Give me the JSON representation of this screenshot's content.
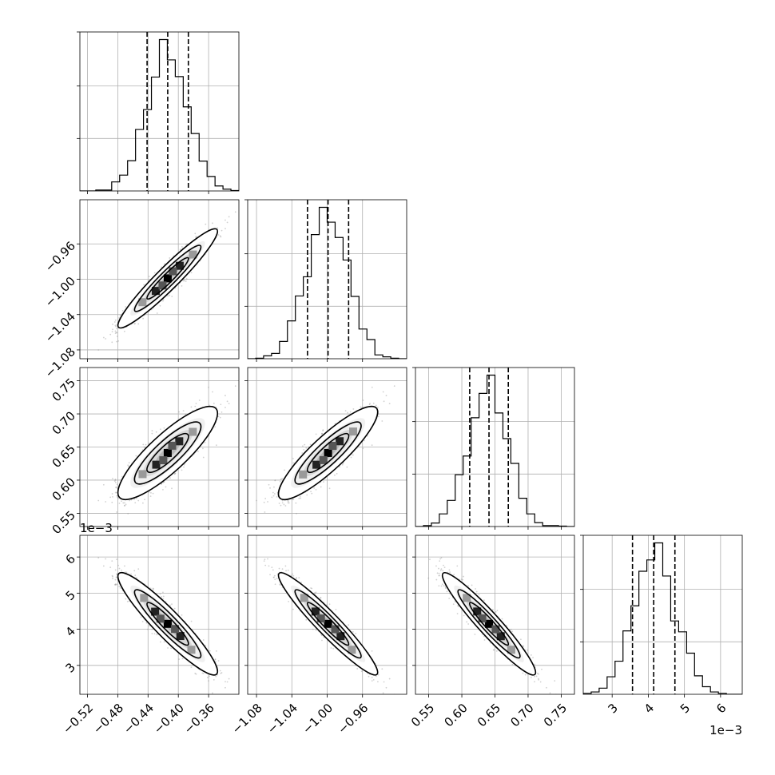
{
  "chart_data": {
    "type": "corner",
    "colors": {
      "ink": "#000000",
      "grid": "#b0b0b0",
      "samples": "#9a9a9a"
    },
    "params": [
      {
        "median": -0.414,
        "sigma": 0.0274,
        "range": [
          -0.53,
          -0.32
        ],
        "ticks": [
          -0.52,
          -0.48,
          -0.44,
          -0.4,
          -0.36
        ],
        "tick_labels": [
          "−0.52",
          "−0.48",
          "−0.44",
          "−0.40",
          "−0.36"
        ],
        "offset_text": ""
      },
      {
        "median": -0.999,
        "sigma": 0.0234,
        "range": [
          -1.09,
          -0.91
        ],
        "ticks": [
          -1.08,
          -1.04,
          -1.0,
          -0.96
        ],
        "tick_labels": [
          "−1.08",
          "−1.04",
          "−1.00",
          "−0.96"
        ],
        "offset_text": ""
      },
      {
        "median": 0.641,
        "sigma": 0.0293,
        "range": [
          0.53,
          0.77
        ],
        "ticks": [
          0.55,
          0.6,
          0.65,
          0.7,
          0.75
        ],
        "tick_labels": [
          "0.55",
          "0.60",
          "0.65",
          "0.70",
          "0.75"
        ],
        "offset_text": ""
      },
      {
        "median": 4.15,
        "sigma": 0.59,
        "range": [
          2.2,
          6.6
        ],
        "ticks": [
          3,
          4,
          5,
          6
        ],
        "tick_labels": [
          "3",
          "4",
          "5",
          "6"
        ],
        "offset_text": "1e−3"
      }
    ],
    "quantiles": [
      0.16,
      0.5,
      0.84
    ],
    "correlations": [
      [
        1.0,
        0.95,
        0.85,
        -0.93
      ],
      [
        0.95,
        1.0,
        0.88,
        -0.95
      ],
      [
        0.85,
        0.88,
        1.0,
        -0.95
      ],
      [
        -0.93,
        -0.95,
        -0.95,
        1.0
      ]
    ],
    "histogram_bins": 20,
    "contour_levels_sigma": [
      0.5,
      1.0,
      1.5,
      2.0
    ],
    "grid": true
  }
}
